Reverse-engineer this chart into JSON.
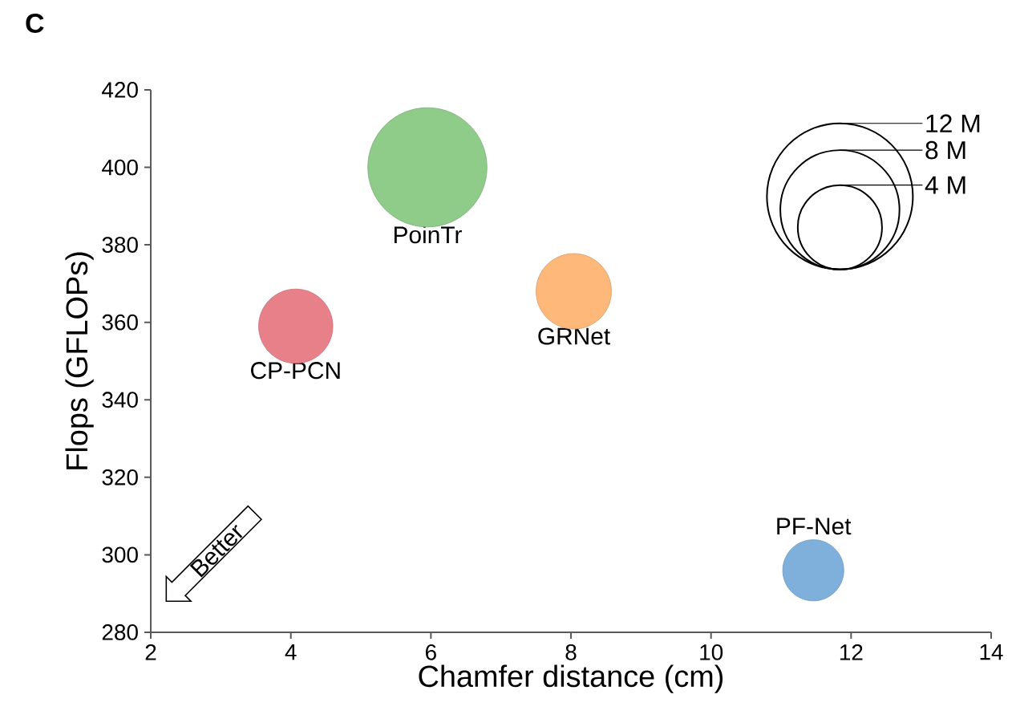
{
  "chart_data": {
    "type": "bubble",
    "title": "C",
    "xlabel": "Chamfer distance (cm)",
    "ylabel": "Flops (GFLOPs)",
    "xlim": [
      2,
      14
    ],
    "xticks": [
      2,
      4,
      6,
      8,
      10,
      12,
      14
    ],
    "ylim": [
      280,
      420
    ],
    "yticks": [
      280,
      300,
      320,
      340,
      360,
      380,
      400,
      420
    ],
    "size_legend": [
      {
        "value": 12,
        "label": "12 M"
      },
      {
        "value": 8,
        "label": "8 M"
      },
      {
        "value": 4,
        "label": "4 M"
      }
    ],
    "annotations": [
      "Better"
    ],
    "grid": false,
    "series": [
      {
        "name": "PoinTr",
        "color": "#8fcc8a",
        "x": [
          5.95
        ],
        "values": [
          400
        ],
        "sizes": [
          8.0
        ]
      },
      {
        "name": "CP-PCN",
        "color": "#e8808a",
        "x": [
          4.07
        ],
        "values": [
          359
        ],
        "sizes": [
          3.1
        ]
      },
      {
        "name": "GRNet",
        "color": "#fdb87a",
        "x": [
          8.04
        ],
        "values": [
          368
        ],
        "sizes": [
          3.2
        ]
      },
      {
        "name": "PF-Net",
        "color": "#7fb0dc",
        "x": [
          11.46
        ],
        "values": [
          296
        ],
        "sizes": [
          2.1
        ]
      }
    ]
  }
}
